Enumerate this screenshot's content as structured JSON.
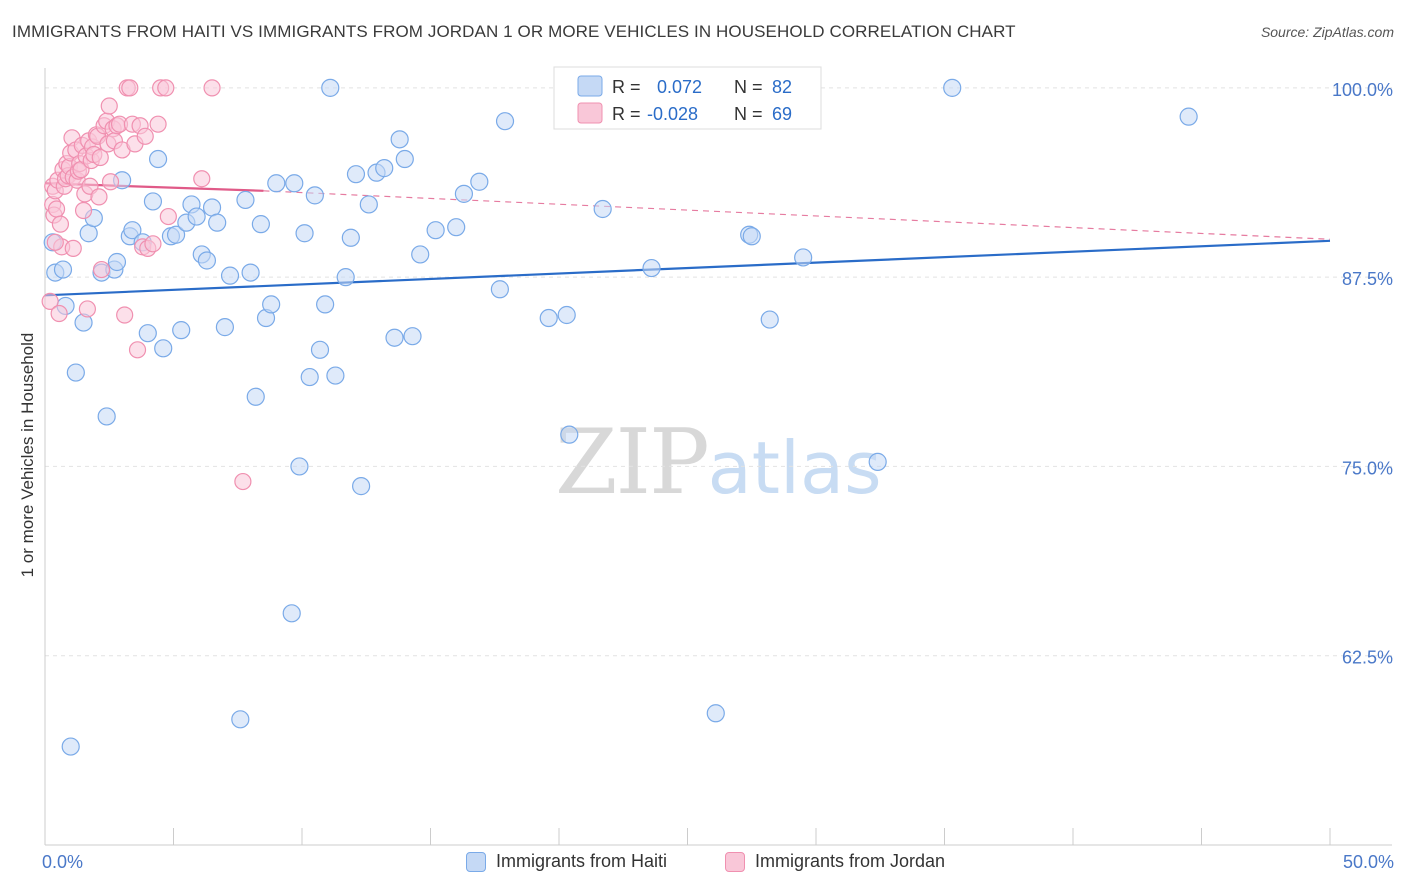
{
  "chart_data": {
    "type": "scatter",
    "title": "IMMIGRANTS FROM HAITI VS IMMIGRANTS FROM JORDAN 1 OR MORE VEHICLES IN HOUSEHOLD CORRELATION CHART",
    "source": "Source: ZipAtlas.com",
    "xlabel": "",
    "ylabel": "1 or more Vehicles in Household",
    "xlim": [
      0,
      50
    ],
    "ylim": [
      50,
      102.5
    ],
    "x_tick_labels": {
      "left": "0.0%",
      "right": "50.0%"
    },
    "y_ticks": [
      {
        "value": 100,
        "label": "100.0%"
      },
      {
        "value": 87.5,
        "label": "87.5%"
      },
      {
        "value": 75,
        "label": "75.0%"
      },
      {
        "value": 62.5,
        "label": "62.5%"
      }
    ],
    "grid": true,
    "legend_position": "top-center",
    "legend": [
      {
        "r_label": "R =",
        "r_value": "0.072",
        "n_label": "N =",
        "n_value": "82"
      },
      {
        "r_label": "R =",
        "r_value": "-0.028",
        "n_label": "N =",
        "n_value": "69"
      }
    ],
    "watermark": {
      "zip": "ZIP",
      "atlas": "atlas"
    },
    "series": [
      {
        "name": "Immigrants from Haiti",
        "color": "#7aaae8",
        "fill": "#c5d9f5",
        "trend": {
          "x0": 0,
          "y0": 86.3,
          "x1": 50,
          "y1": 89.9,
          "color": "#2a6cc8"
        },
        "points": [
          [
            0.3,
            89.8
          ],
          [
            0.4,
            87.8
          ],
          [
            0.7,
            88.0
          ],
          [
            0.8,
            85.6
          ],
          [
            1.0,
            56.5
          ],
          [
            1.2,
            81.2
          ],
          [
            1.5,
            84.5
          ],
          [
            1.7,
            90.4
          ],
          [
            1.9,
            91.4
          ],
          [
            2.2,
            87.8
          ],
          [
            2.4,
            78.3
          ],
          [
            2.7,
            88.0
          ],
          [
            2.8,
            88.5
          ],
          [
            3.0,
            93.9
          ],
          [
            3.3,
            90.2
          ],
          [
            3.4,
            90.6
          ],
          [
            3.8,
            89.8
          ],
          [
            4.0,
            83.8
          ],
          [
            4.2,
            92.5
          ],
          [
            4.4,
            95.3
          ],
          [
            4.6,
            82.8
          ],
          [
            4.9,
            90.2
          ],
          [
            5.1,
            90.3
          ],
          [
            5.3,
            84.0
          ],
          [
            5.5,
            91.1
          ],
          [
            5.7,
            92.3
          ],
          [
            5.9,
            91.5
          ],
          [
            6.1,
            89.0
          ],
          [
            6.3,
            88.6
          ],
          [
            6.5,
            92.1
          ],
          [
            6.7,
            91.1
          ],
          [
            7.0,
            84.2
          ],
          [
            7.2,
            87.6
          ],
          [
            7.6,
            58.3
          ],
          [
            7.8,
            92.6
          ],
          [
            8.0,
            87.8
          ],
          [
            8.2,
            79.6
          ],
          [
            8.4,
            91.0
          ],
          [
            8.6,
            84.8
          ],
          [
            8.8,
            85.7
          ],
          [
            9.0,
            93.7
          ],
          [
            9.6,
            65.3
          ],
          [
            9.7,
            93.7
          ],
          [
            9.9,
            75.0
          ],
          [
            10.1,
            90.4
          ],
          [
            10.3,
            80.9
          ],
          [
            10.5,
            92.9
          ],
          [
            10.7,
            82.7
          ],
          [
            10.9,
            85.7
          ],
          [
            11.1,
            100.0
          ],
          [
            11.3,
            81.0
          ],
          [
            11.7,
            87.5
          ],
          [
            11.9,
            90.1
          ],
          [
            12.1,
            94.3
          ],
          [
            12.3,
            73.7
          ],
          [
            12.6,
            92.3
          ],
          [
            12.9,
            94.4
          ],
          [
            13.2,
            94.7
          ],
          [
            13.6,
            83.5
          ],
          [
            13.8,
            96.6
          ],
          [
            14.0,
            95.3
          ],
          [
            14.3,
            83.6
          ],
          [
            14.6,
            89.0
          ],
          [
            15.2,
            90.6
          ],
          [
            16.0,
            90.8
          ],
          [
            16.3,
            93.0
          ],
          [
            16.9,
            93.8
          ],
          [
            17.7,
            86.7
          ],
          [
            17.9,
            97.8
          ],
          [
            19.6,
            84.8
          ],
          [
            20.3,
            85.0
          ],
          [
            20.4,
            77.1
          ],
          [
            21.7,
            92.0
          ],
          [
            23.6,
            88.1
          ],
          [
            26.1,
            58.7
          ],
          [
            27.4,
            90.3
          ],
          [
            27.5,
            90.2
          ],
          [
            28.2,
            84.7
          ],
          [
            29.5,
            88.8
          ],
          [
            32.4,
            75.3
          ],
          [
            35.3,
            100.0
          ],
          [
            44.5,
            98.1
          ]
        ]
      },
      {
        "name": "Immigrants from Jordan",
        "color": "#f090b0",
        "fill": "#f9c7d8",
        "trend": {
          "x0": 0,
          "y0": 93.7,
          "x1": 8.5,
          "y1": 93.2,
          "dash_x1": 50,
          "dash_y1": 90.0,
          "color": "#e05a88"
        },
        "points": [
          [
            0.2,
            85.9
          ],
          [
            0.3,
            92.3
          ],
          [
            0.3,
            93.5
          ],
          [
            0.35,
            91.6
          ],
          [
            0.4,
            93.2
          ],
          [
            0.45,
            92.0
          ],
          [
            0.5,
            93.9
          ],
          [
            0.55,
            85.1
          ],
          [
            0.6,
            91.0
          ],
          [
            0.65,
            89.5
          ],
          [
            0.7,
            94.6
          ],
          [
            0.75,
            93.5
          ],
          [
            0.8,
            94.0
          ],
          [
            0.85,
            95.0
          ],
          [
            0.9,
            94.2
          ],
          [
            0.95,
            94.8
          ],
          [
            1.0,
            95.7
          ],
          [
            1.05,
            96.7
          ],
          [
            1.1,
            94.1
          ],
          [
            1.2,
            95.9
          ],
          [
            1.25,
            93.9
          ],
          [
            1.3,
            94.5
          ],
          [
            1.35,
            95.0
          ],
          [
            1.4,
            94.6
          ],
          [
            1.45,
            96.2
          ],
          [
            1.5,
            91.9
          ],
          [
            1.55,
            93.0
          ],
          [
            1.6,
            95.5
          ],
          [
            1.65,
            85.4
          ],
          [
            1.7,
            96.5
          ],
          [
            1.75,
            93.5
          ],
          [
            1.8,
            95.2
          ],
          [
            1.85,
            96.1
          ],
          [
            1.9,
            95.6
          ],
          [
            2.0,
            96.9
          ],
          [
            2.05,
            96.8
          ],
          [
            2.1,
            92.8
          ],
          [
            2.15,
            95.4
          ],
          [
            2.2,
            88.0
          ],
          [
            2.3,
            97.5
          ],
          [
            2.4,
            97.8
          ],
          [
            2.45,
            96.3
          ],
          [
            2.5,
            98.8
          ],
          [
            2.55,
            93.8
          ],
          [
            2.65,
            97.3
          ],
          [
            2.7,
            96.5
          ],
          [
            2.8,
            97.5
          ],
          [
            2.9,
            97.6
          ],
          [
            3.0,
            95.9
          ],
          [
            3.1,
            85.0
          ],
          [
            3.2,
            100.0
          ],
          [
            3.3,
            100.0
          ],
          [
            3.4,
            97.6
          ],
          [
            3.5,
            96.3
          ],
          [
            3.6,
            82.7
          ],
          [
            3.7,
            97.5
          ],
          [
            3.8,
            89.5
          ],
          [
            3.9,
            96.8
          ],
          [
            4.0,
            89.4
          ],
          [
            4.2,
            89.7
          ],
          [
            4.4,
            97.6
          ],
          [
            4.5,
            100.0
          ],
          [
            4.7,
            100.0
          ],
          [
            4.8,
            91.5
          ],
          [
            6.1,
            94.0
          ],
          [
            6.5,
            100.0
          ],
          [
            7.7,
            74.0
          ],
          [
            0.4,
            89.8
          ],
          [
            1.1,
            89.4
          ]
        ]
      }
    ]
  }
}
